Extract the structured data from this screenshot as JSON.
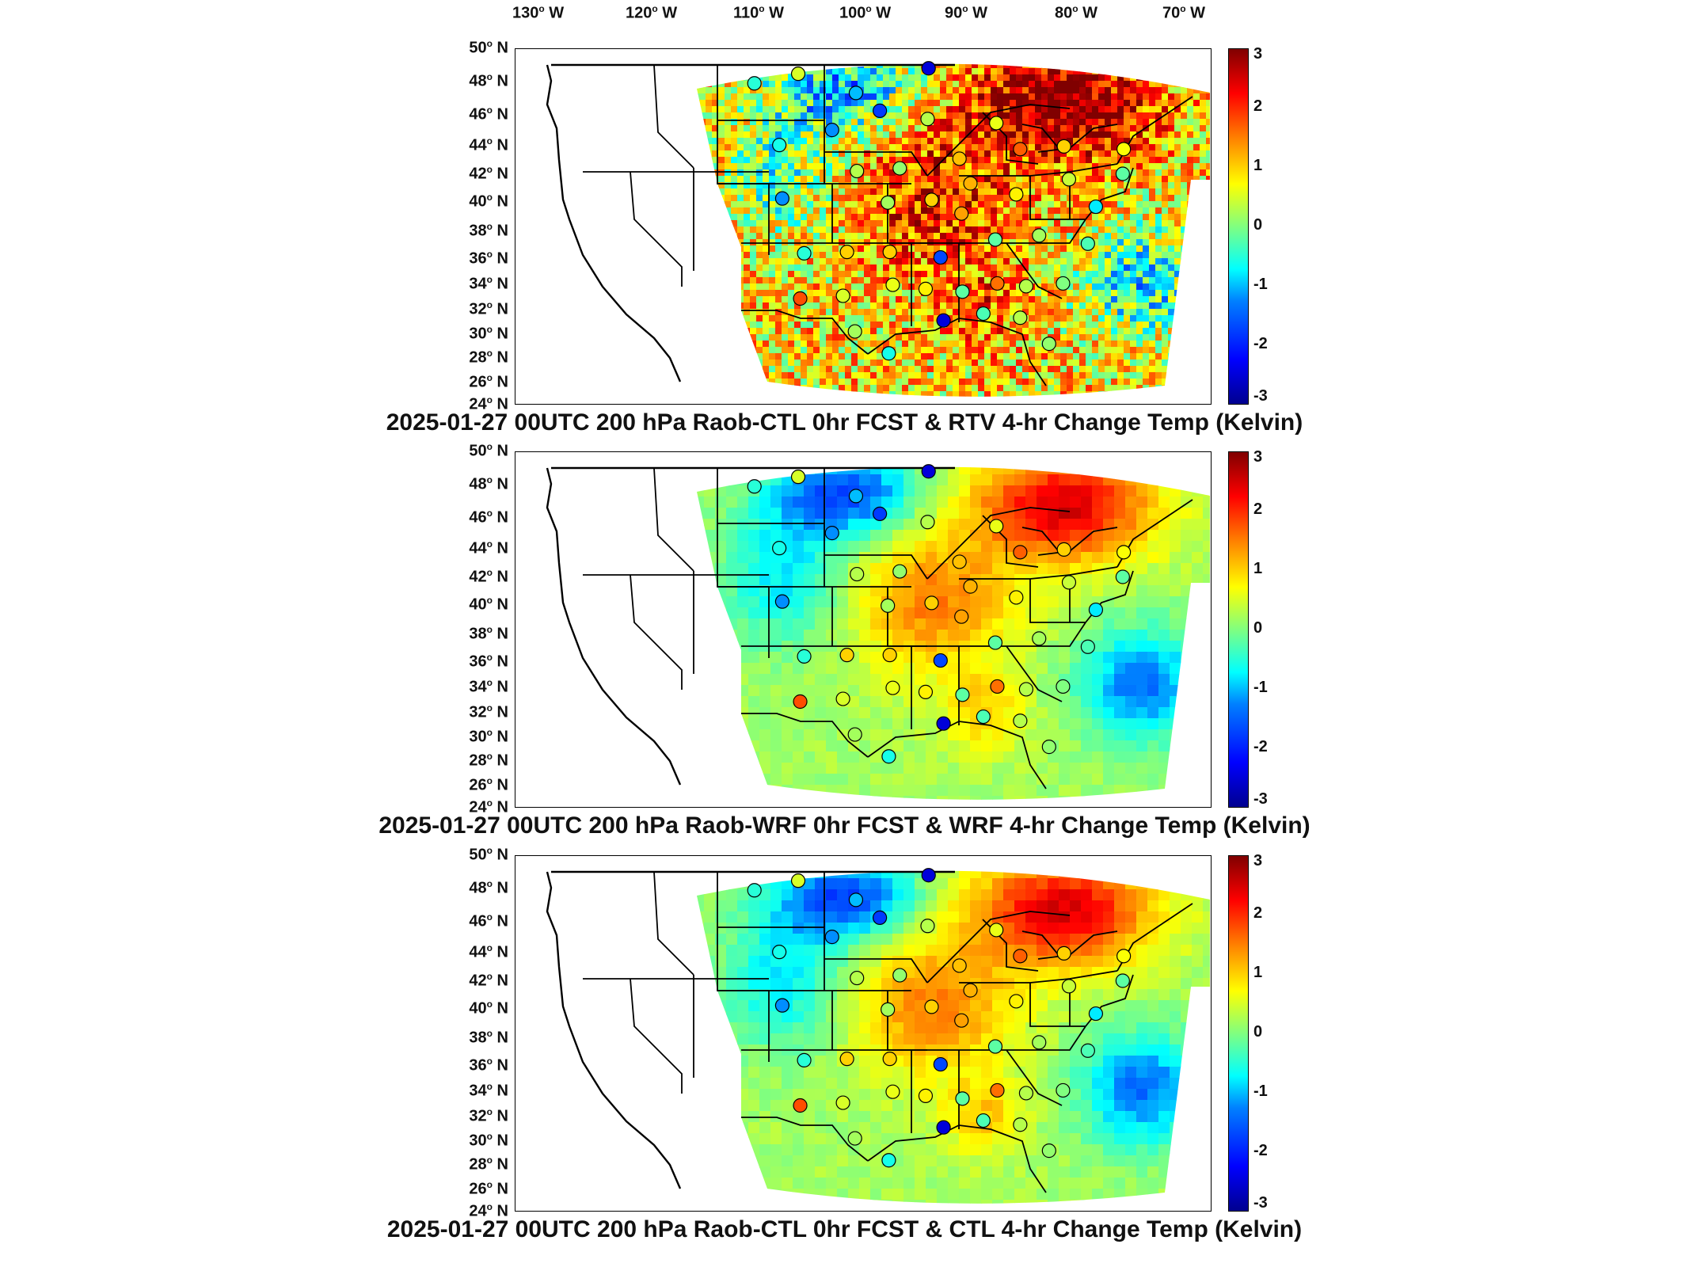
{
  "longitude_labels": [
    {
      "num": "130",
      "dir": "W"
    },
    {
      "num": "120",
      "dir": "W"
    },
    {
      "num": "110",
      "dir": "W"
    },
    {
      "num": "100",
      "dir": "W"
    },
    {
      "num": "90",
      "dir": "W"
    },
    {
      "num": "80",
      "dir": "W"
    },
    {
      "num": "70",
      "dir": "W"
    }
  ],
  "latitude_labels": [
    {
      "num": "50",
      "dir": "N"
    },
    {
      "num": "48",
      "dir": "N"
    },
    {
      "num": "46",
      "dir": "N"
    },
    {
      "num": "44",
      "dir": "N"
    },
    {
      "num": "42",
      "dir": "N"
    },
    {
      "num": "40",
      "dir": "N"
    },
    {
      "num": "38",
      "dir": "N"
    },
    {
      "num": "36",
      "dir": "N"
    },
    {
      "num": "34",
      "dir": "N"
    },
    {
      "num": "32",
      "dir": "N"
    },
    {
      "num": "30",
      "dir": "N"
    },
    {
      "num": "28",
      "dir": "N"
    },
    {
      "num": "26",
      "dir": "N"
    },
    {
      "num": "24",
      "dir": "N"
    }
  ],
  "colorbar": {
    "ticks": [
      "3",
      "2",
      "1",
      "0",
      "-1",
      "-2",
      "-3"
    ],
    "range": [
      -3,
      3
    ],
    "colormap": [
      "#00008f",
      "#0000ff",
      "#0080ff",
      "#00ffff",
      "#80ff80",
      "#ffff00",
      "#ff8000",
      "#ff0000",
      "#800000"
    ]
  },
  "panels": [
    {
      "title": "2025-01-27 00UTC 200 hPa Raob-CTL 0hr FCST & RTV 4-hr Change Temp (Kelvin)",
      "field": "noisy"
    },
    {
      "title": "2025-01-27 00UTC 200 hPa Raob-WRF 0hr FCST & WRF 4-hr Change Temp (Kelvin)",
      "field": "smooth"
    },
    {
      "title": "2025-01-27 00UTC 200 hPa Raob-CTL 0hr FCST & CTL 4-hr Change Temp (Kelvin)",
      "field": "smooth"
    }
  ],
  "chart_data": {
    "type": "heatmap",
    "x_axis": "longitude",
    "y_axis": "latitude",
    "xlim": [
      -135,
      -65
    ],
    "ylim": [
      24,
      50
    ],
    "units": "Kelvin",
    "value_range": [
      -3,
      3
    ],
    "stations": [
      {
        "lon": -111.0,
        "lat": 47.5,
        "value": -0.5
      },
      {
        "lon": -106.6,
        "lat": 48.2,
        "value": 0.5
      },
      {
        "lon": -100.8,
        "lat": 46.8,
        "value": -1.0
      },
      {
        "lon": -98.4,
        "lat": 45.5,
        "value": -1.8
      },
      {
        "lon": -93.5,
        "lat": 48.6,
        "value": -2.5
      },
      {
        "lon": -103.2,
        "lat": 44.1,
        "value": -1.2
      },
      {
        "lon": -93.6,
        "lat": 44.9,
        "value": 0.3
      },
      {
        "lon": -86.7,
        "lat": 44.6,
        "value": 0.6
      },
      {
        "lon": -108.5,
        "lat": 43.0,
        "value": -0.6
      },
      {
        "lon": -90.4,
        "lat": 42.0,
        "value": 1.1
      },
      {
        "lon": -84.3,
        "lat": 42.7,
        "value": 1.7
      },
      {
        "lon": -79.9,
        "lat": 42.9,
        "value": 1.0
      },
      {
        "lon": -73.9,
        "lat": 42.7,
        "value": 0.7
      },
      {
        "lon": -100.7,
        "lat": 41.1,
        "value": 0.3
      },
      {
        "lon": -96.4,
        "lat": 41.3,
        "value": 0.1
      },
      {
        "lon": -89.3,
        "lat": 40.2,
        "value": 1.2
      },
      {
        "lon": -84.7,
        "lat": 39.4,
        "value": 0.8
      },
      {
        "lon": -79.4,
        "lat": 40.5,
        "value": 0.4
      },
      {
        "lon": -74.0,
        "lat": 40.9,
        "value": -0.2
      },
      {
        "lon": -108.2,
        "lat": 39.1,
        "value": -1.2
      },
      {
        "lon": -97.6,
        "lat": 38.8,
        "value": 0.2
      },
      {
        "lon": -93.2,
        "lat": 39.0,
        "value": 1.0
      },
      {
        "lon": -90.2,
        "lat": 38.0,
        "value": 1.3
      },
      {
        "lon": -76.7,
        "lat": 38.5,
        "value": -0.8
      },
      {
        "lon": -106.0,
        "lat": 35.1,
        "value": -0.5
      },
      {
        "lon": -101.7,
        "lat": 35.2,
        "value": 1.0
      },
      {
        "lon": -97.4,
        "lat": 35.2,
        "value": 1.0
      },
      {
        "lon": -92.3,
        "lat": 34.8,
        "value": -1.7
      },
      {
        "lon": -86.8,
        "lat": 36.1,
        "value": -0.2
      },
      {
        "lon": -82.4,
        "lat": 36.4,
        "value": 0.2
      },
      {
        "lon": -77.5,
        "lat": 35.8,
        "value": -0.3
      },
      {
        "lon": -106.4,
        "lat": 31.8,
        "value": 1.8
      },
      {
        "lon": -102.1,
        "lat": 32.0,
        "value": 0.5
      },
      {
        "lon": -97.1,
        "lat": 32.8,
        "value": 0.6
      },
      {
        "lon": -93.8,
        "lat": 32.5,
        "value": 0.8
      },
      {
        "lon": -90.1,
        "lat": 32.3,
        "value": -0.2
      },
      {
        "lon": -86.6,
        "lat": 32.9,
        "value": 1.6
      },
      {
        "lon": -83.7,
        "lat": 32.7,
        "value": 0.3
      },
      {
        "lon": -80.0,
        "lat": 32.9,
        "value": 0.0
      },
      {
        "lon": -92.0,
        "lat": 30.2,
        "value": -2.5
      },
      {
        "lon": -88.0,
        "lat": 30.7,
        "value": -0.3
      },
      {
        "lon": -84.3,
        "lat": 30.4,
        "value": 0.3
      },
      {
        "lon": -100.9,
        "lat": 29.4,
        "value": 0.2
      },
      {
        "lon": -97.5,
        "lat": 27.8,
        "value": -0.6
      },
      {
        "lon": -81.4,
        "lat": 28.5,
        "value": 0.1
      }
    ]
  }
}
